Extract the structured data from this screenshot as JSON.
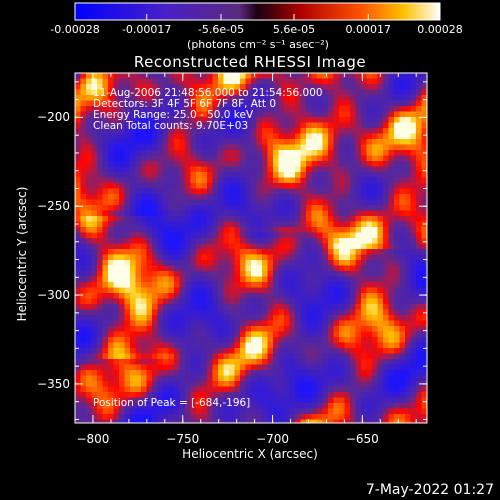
{
  "colorbar": {
    "ticks": [
      "-0.00028",
      "-0.00017",
      "-5.6e-05",
      "5.6e-05",
      "0.00017",
      "0.00028"
    ],
    "units": "(photons cm⁻² s⁻¹ asec⁻²)"
  },
  "image": {
    "title": "Reconstructed RHESSI Image",
    "info_lines": [
      "11-Aug-2006 21:48:56.000 to 21:54:56.000",
      "Detectors: 3F 4F 5F 6F 7F 8F, Att 0",
      "Energy Range: 25.0 - 50.0 keV",
      "Clean     Total counts: 9.70E+03"
    ],
    "peak_text": "Position of Peak = [-684,-196]"
  },
  "chart_data": {
    "type": "heatmap",
    "title": "Reconstructed RHESSI Image",
    "xlabel": "Heliocentric X (arcsec)",
    "ylabel": "Heliocentric Y (arcsec)",
    "xlim": [
      -810,
      -614
    ],
    "ylim": [
      -372,
      -175
    ],
    "x_ticks": [
      -800,
      -750,
      -700,
      -650
    ],
    "y_ticks": [
      -200,
      -250,
      -300,
      -350
    ],
    "value_range": [
      -0.00028,
      0.00028
    ],
    "peak": [
      -684,
      -196
    ]
  },
  "footer_date": "7-May-2022 01:27"
}
